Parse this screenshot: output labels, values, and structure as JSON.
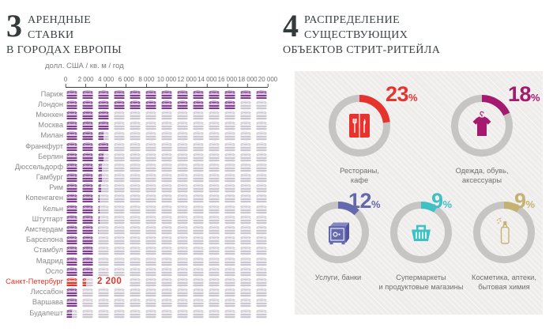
{
  "left": {
    "number": "3",
    "title_line1": "АРЕНДНЫЕ СТАВКИ",
    "title_line2": "В ГОРОДАХ ЕВРОПЫ",
    "axis_unit": "долл. США / кв. м / год",
    "axis_ticks": [
      "0",
      "2 000",
      "4 000",
      "6 000",
      "8 000",
      "10 000",
      "12 000",
      "14 000",
      "16 000",
      "18 000",
      "20 000"
    ],
    "coin_color": "#7e3d8f",
    "coin_empty_color": "#cbc6cf",
    "highlight_color": "#e6332a",
    "rows": [
      {
        "city": "Париж",
        "coins": 13
      },
      {
        "city": "Лондон",
        "coins": 11
      },
      {
        "city": "Мюнхен",
        "coins": 3
      },
      {
        "city": "Москва",
        "coins": 3
      },
      {
        "city": "Милан",
        "coins": 2.5
      },
      {
        "city": "Франкфурт",
        "coins": 2.9
      },
      {
        "city": "Берлин",
        "coins": 2.5
      },
      {
        "city": "Дюссельдорф",
        "coins": 2.4
      },
      {
        "city": "Гамбург",
        "coins": 2.4
      },
      {
        "city": "Рим",
        "coins": 2.3
      },
      {
        "city": "Копенгаген",
        "coins": 2.2
      },
      {
        "city": "Кельн",
        "coins": 2.2
      },
      {
        "city": "Штутгарт",
        "coins": 2.2
      },
      {
        "city": "Амстердам",
        "coins": 2.1
      },
      {
        "city": "Барселона",
        "coins": 2.05
      },
      {
        "city": "Стамбул",
        "coins": 2
      },
      {
        "city": "Мадрид",
        "coins": 2
      },
      {
        "city": "Осло",
        "coins": 2
      },
      {
        "city": "Санкт-Петербург",
        "coins": 1.4,
        "highlight": true,
        "value_label": "2 200"
      },
      {
        "city": "Лиссабон",
        "coins": 1
      },
      {
        "city": "Варшава",
        "coins": 1
      },
      {
        "city": "Будапешт",
        "coins": 0.5
      }
    ]
  },
  "right": {
    "number": "4",
    "title_line1": "РАСПРЕДЕЛЕНИЕ СУЩЕСТВУЮЩИХ",
    "title_line2": "ОБЪЕКТОВ СТРИТ-РИТЕЙЛА",
    "percent_sign": "%",
    "ring_color": "#c6c5c3",
    "donuts": [
      {
        "percent": 23,
        "label_lines": [
          "Рестораны,",
          "кафе"
        ],
        "color": "#e6332e",
        "icon": "restaurant-menu"
      },
      {
        "percent": 18,
        "label_lines": [
          "Одежда, обувь,",
          "аксессуары"
        ],
        "color": "#a51a6e",
        "icon": "tshirt-hanger"
      },
      {
        "percent": 12,
        "label_lines": [
          "Услуги, банки"
        ],
        "color": "#6468ad",
        "icon": "safe"
      },
      {
        "percent": 9,
        "label_lines": [
          "Супермаркеты",
          "и продуктовые магазины"
        ],
        "color": "#3fc0c4",
        "icon": "shopping-basket"
      },
      {
        "percent": 9,
        "label_lines": [
          "Косметика, аптеки,",
          "бытовая химия"
        ],
        "color": "#c5b272",
        "icon": "spray-bottle"
      }
    ]
  },
  "chart_data": [
    {
      "type": "bar",
      "subtype": "pictogram-coins",
      "title": "АРЕНДНЫЕ СТАВКИ В ГОРОДАХ ЕВРОПЫ",
      "ylabel": "долл. США / кв. м / год",
      "xlim": [
        0,
        20000
      ],
      "axis_ticks": [
        0,
        2000,
        4000,
        6000,
        8000,
        10000,
        12000,
        14000,
        16000,
        18000,
        20000
      ],
      "coins_per_row": 13,
      "categories": [
        "Париж",
        "Лондон",
        "Мюнхен",
        "Москва",
        "Милан",
        "Франкфурт",
        "Берлин",
        "Дюссельдорф",
        "Гамбург",
        "Рим",
        "Копенгаген",
        "Кельн",
        "Штутгарт",
        "Амстердам",
        "Барселона",
        "Стамбул",
        "Мадрид",
        "Осло",
        "Санкт-Петербург",
        "Лиссабон",
        "Варшава",
        "Будапешт"
      ],
      "coin_counts": [
        13,
        11,
        3,
        3,
        2.5,
        2.9,
        2.5,
        2.4,
        2.4,
        2.3,
        2.2,
        2.2,
        2.2,
        2.1,
        2.05,
        2,
        2,
        2,
        1.4,
        1,
        1,
        0.5
      ],
      "values_estimated": [
        20000,
        16900,
        4600,
        4600,
        3850,
        4450,
        3850,
        3700,
        3700,
        3550,
        3400,
        3400,
        3400,
        3250,
        3150,
        3100,
        3100,
        3100,
        2200,
        1550,
        1550,
        770
      ],
      "labeled_values": {
        "Санкт-Петербург": 2200
      },
      "highlight_category": "Санкт-Петербург"
    },
    {
      "type": "pie",
      "subtype": "donut-set",
      "title": "РАСПРЕДЕЛЕНИЕ СУЩЕСТВУЮЩИХ ОБЪЕКТОВ СТРИТ-РИТЕЙЛА",
      "categories": [
        "Рестораны, кафе",
        "Одежда, обувь, аксессуары",
        "Услуги, банки",
        "Супермаркеты и продуктовые магазины",
        "Косметика, аптеки, бытовая химия"
      ],
      "values": [
        23,
        18,
        12,
        9,
        9
      ],
      "colors": [
        "#e6332e",
        "#a51a6e",
        "#6468ad",
        "#3fc0c4",
        "#c5b272"
      ]
    }
  ]
}
